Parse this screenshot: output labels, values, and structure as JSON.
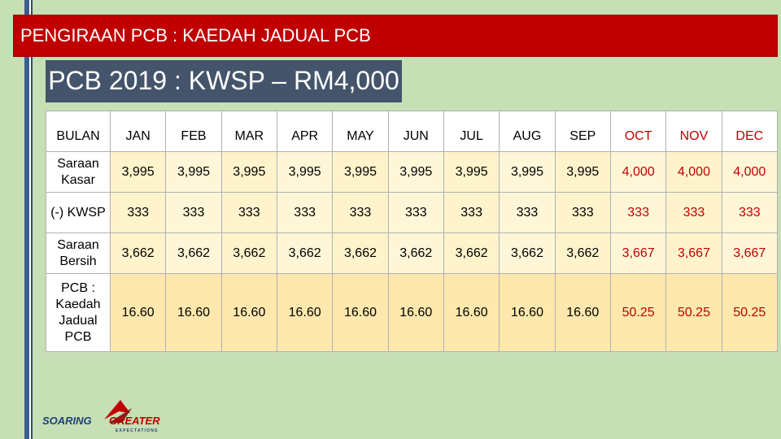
{
  "header": {
    "title": "PENGIRAAN PCB : KAEDAH JADUAL PCB"
  },
  "subtitle": {
    "text": "PCB 2019 : KWSP – RM4,000"
  },
  "table": {
    "row_label_header": "BULAN",
    "months": [
      "JAN",
      "FEB",
      "MAR",
      "APR",
      "MAY",
      "JUN",
      "JUL",
      "AUG",
      "SEP",
      "OCT",
      "NOV",
      "DEC"
    ],
    "rows": [
      {
        "label": "Saraan Kasar",
        "values": [
          "3,995",
          "3,995",
          "3,995",
          "3,995",
          "3,995",
          "3,995",
          "3,995",
          "3,995",
          "3,995",
          "4,000",
          "4,000",
          "4,000"
        ]
      },
      {
        "label": "(-) KWSP",
        "values": [
          "333",
          "333",
          "333",
          "333",
          "333",
          "333",
          "333",
          "333",
          "333",
          "333",
          "333",
          "333"
        ]
      },
      {
        "label": "Saraan Bersih",
        "values": [
          "3,662",
          "3,662",
          "3,662",
          "3,662",
          "3,662",
          "3,662",
          "3,662",
          "3,662",
          "3,662",
          "3,667",
          "3,667",
          "3,667"
        ]
      },
      {
        "label": "PCB : Kaedah Jadual PCB",
        "values": [
          "16.60",
          "16.60",
          "16.60",
          "16.60",
          "16.60",
          "16.60",
          "16.60",
          "16.60",
          "16.60",
          "50.25",
          "50.25",
          "50.25"
        ]
      }
    ]
  },
  "colors": {
    "header_bg": "#c00000",
    "subtitle_bg": "#44546a",
    "highlight_text": "#c00000",
    "page_bg": "#c7dfb5"
  },
  "logo": {
    "text": "SOARING GREATER EXPECTATIONS"
  }
}
